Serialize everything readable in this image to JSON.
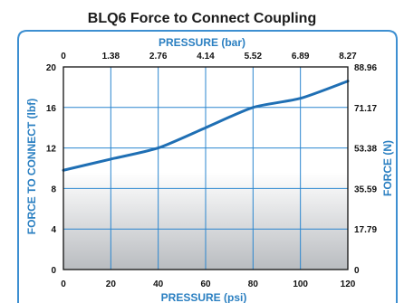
{
  "chart_data": {
    "type": "line",
    "title": "BLQ6 Force to Connect Coupling",
    "xlabel": "PRESSURE (psi)",
    "x2label": "PRESSURE (bar)",
    "ylabel": "FORCE TO CONNECT (lbf)",
    "y2label": "FORCE (N)",
    "xlim": [
      0,
      120
    ],
    "ylim": [
      0,
      20
    ],
    "x_ticks": [
      "0",
      "20",
      "40",
      "60",
      "80",
      "100",
      "120"
    ],
    "x2_ticks": [
      "0",
      "1.38",
      "2.76",
      "4.14",
      "5.52",
      "6.89",
      "8.27"
    ],
    "y_ticks": [
      "0",
      "4",
      "8",
      "12",
      "16",
      "20"
    ],
    "y2_ticks": [
      "0",
      "17.79",
      "35.59",
      "53.38",
      "71.17",
      "88.96"
    ],
    "grid": true,
    "series": [
      {
        "color": "#1f6fb4",
        "x": [
          0,
          20,
          40,
          60,
          80,
          100,
          120
        ],
        "y": [
          9.8,
          10.9,
          12.0,
          14.0,
          16.0,
          16.9,
          18.6
        ]
      }
    ]
  },
  "colors": {
    "accent": "#2a7fc1",
    "line": "#1f6fb4",
    "frame_border": "#3d8fd1"
  }
}
